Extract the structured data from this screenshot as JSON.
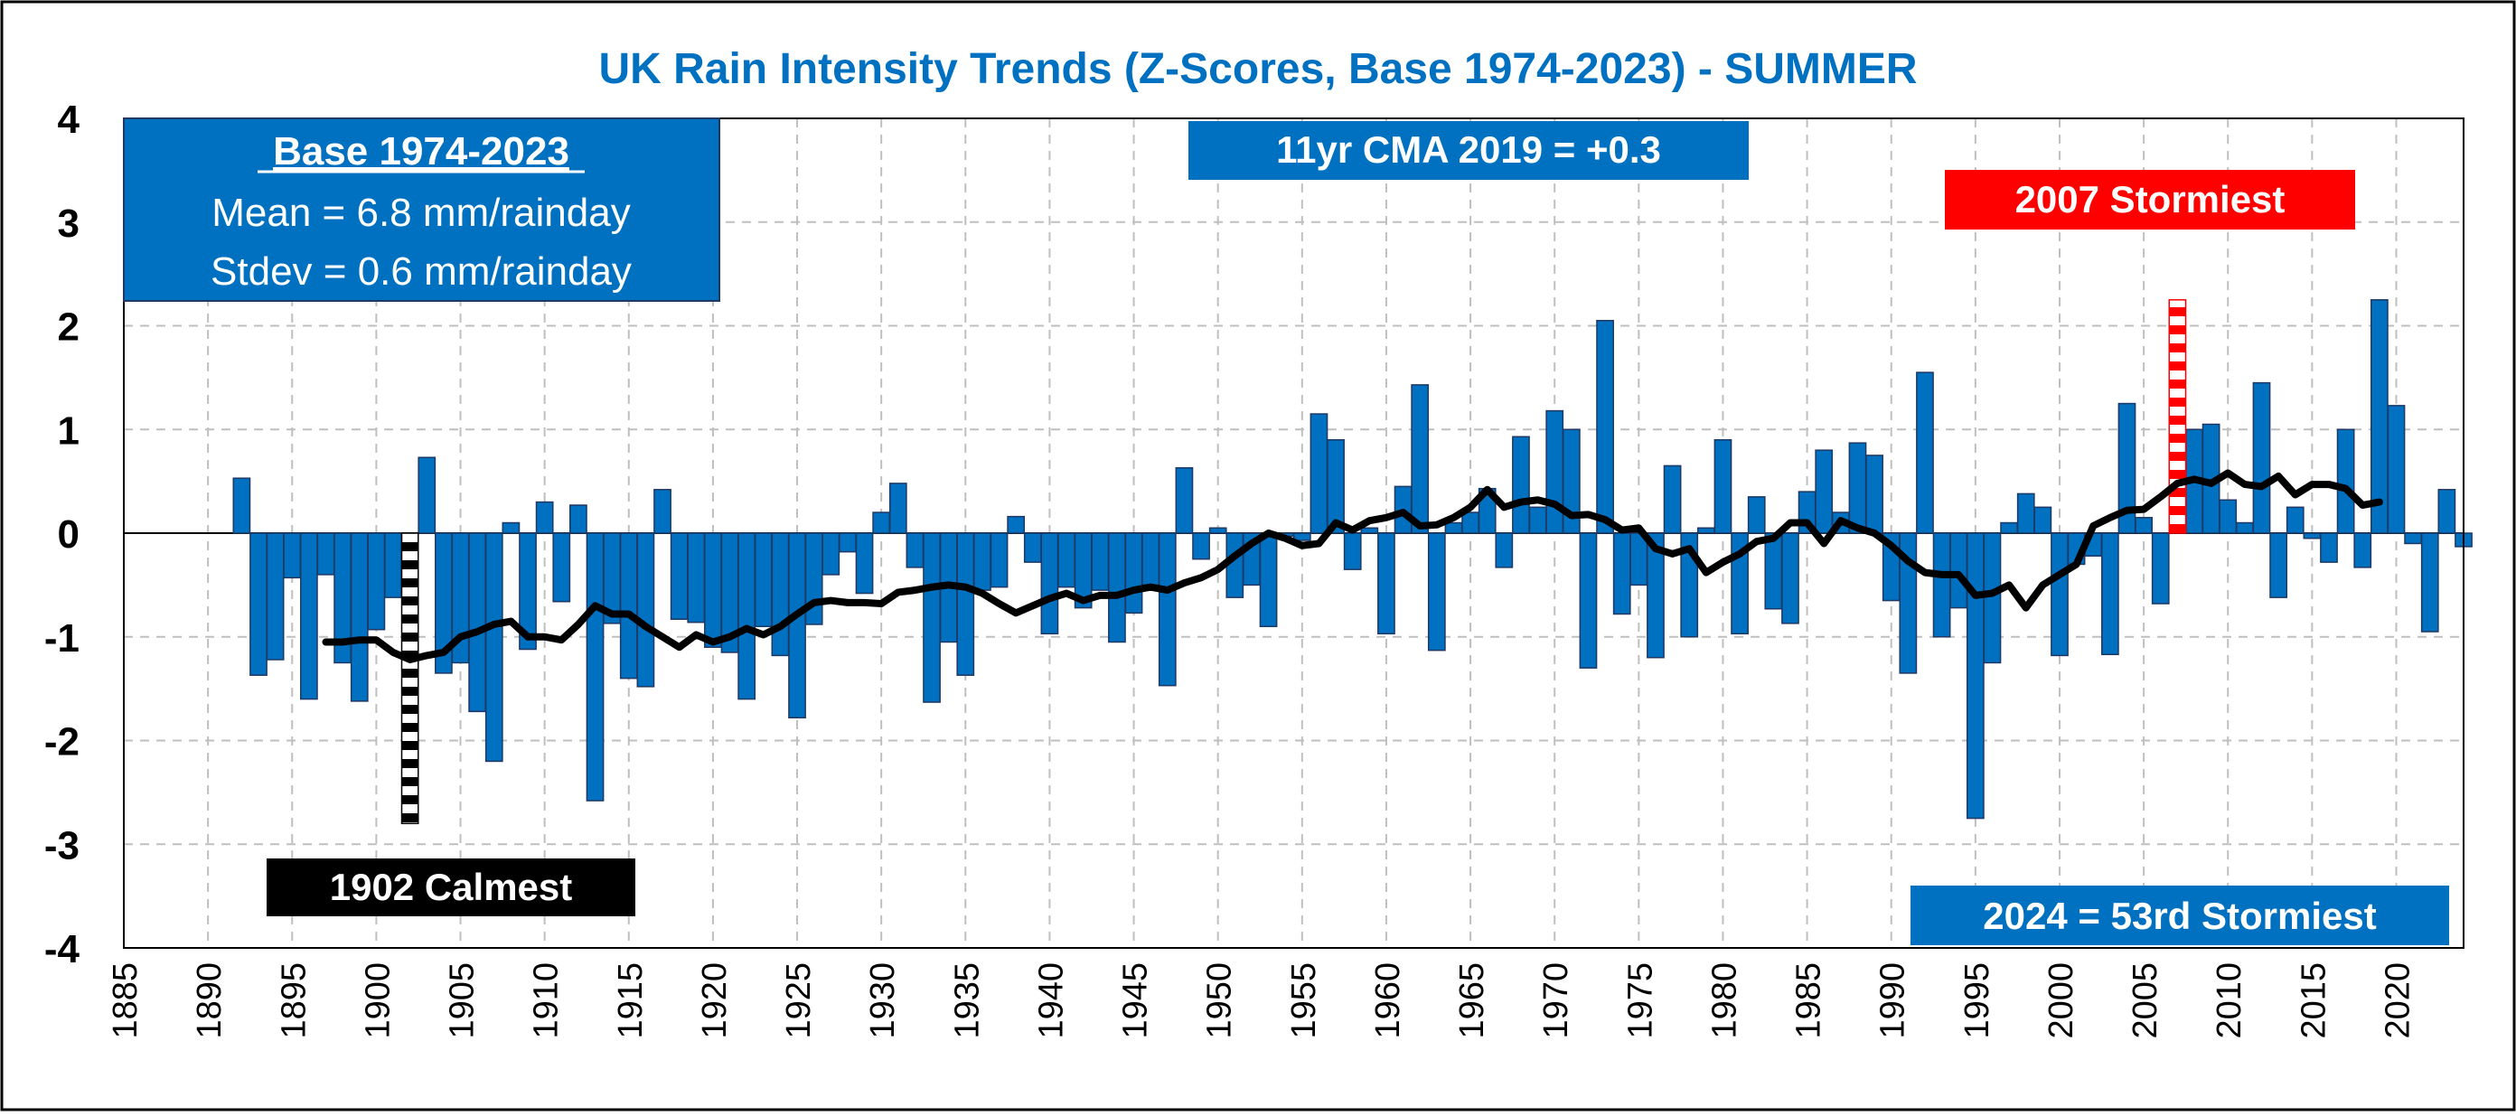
{
  "chart_data": {
    "type": "bar",
    "title": "UK Rain Intensity Trends (Z-Scores, Base 1974-2023) - SUMMER",
    "xlabel": "",
    "ylabel": "",
    "xlim": [
      1885,
      2024
    ],
    "ylim": [
      -4,
      4
    ],
    "grid": true,
    "x_ticks": [
      "1885",
      "1890",
      "1895",
      "1900",
      "1905",
      "1910",
      "1915",
      "1920",
      "1925",
      "1930",
      "1935",
      "1940",
      "1945",
      "1950",
      "1955",
      "1960",
      "1965",
      "1970",
      "1975",
      "1980",
      "1985",
      "1990",
      "1995",
      "2000",
      "2005",
      "2010",
      "2015",
      "2020"
    ],
    "y_ticks": [
      "-4",
      "-3",
      "-2",
      "-1",
      "0",
      "1",
      "2",
      "3",
      "4"
    ],
    "years": [
      1892,
      1893,
      1894,
      1895,
      1896,
      1897,
      1898,
      1899,
      1900,
      1901,
      1902,
      1903,
      1904,
      1905,
      1906,
      1907,
      1908,
      1909,
      1910,
      1911,
      1912,
      1913,
      1914,
      1915,
      1916,
      1917,
      1918,
      1919,
      1920,
      1921,
      1922,
      1923,
      1924,
      1925,
      1926,
      1927,
      1928,
      1929,
      1930,
      1931,
      1932,
      1933,
      1934,
      1935,
      1936,
      1937,
      1938,
      1939,
      1940,
      1941,
      1942,
      1943,
      1944,
      1945,
      1946,
      1947,
      1948,
      1949,
      1950,
      1951,
      1952,
      1953,
      1954,
      1955,
      1956,
      1957,
      1958,
      1959,
      1960,
      1961,
      1962,
      1963,
      1964,
      1965,
      1966,
      1967,
      1968,
      1969,
      1970,
      1971,
      1972,
      1973,
      1974,
      1975,
      1976,
      1977,
      1978,
      1979,
      1980,
      1981,
      1982,
      1983,
      1984,
      1985,
      1986,
      1987,
      1988,
      1989,
      1990,
      1991,
      1992,
      1993,
      1994,
      1995,
      1996,
      1997,
      1998,
      1999,
      2000,
      2001,
      2002,
      2003,
      2004,
      2005,
      2006,
      2007,
      2008,
      2009,
      2010,
      2011,
      2012,
      2013,
      2014,
      2015,
      2016,
      2017,
      2018,
      2019,
      2020,
      2021,
      2022,
      2023,
      2024
    ],
    "values": [
      0.53,
      -1.37,
      -1.22,
      -0.43,
      -1.6,
      -0.4,
      -1.25,
      -1.62,
      -0.93,
      -0.62,
      -2.8,
      0.73,
      -1.35,
      -1.25,
      -1.72,
      -2.2,
      0.1,
      -1.12,
      0.3,
      -0.66,
      0.27,
      -2.58,
      -0.87,
      -1.4,
      -1.48,
      0.42,
      -0.83,
      -0.86,
      -1.1,
      -1.15,
      -1.6,
      -0.9,
      -1.18,
      -1.78,
      -0.88,
      -0.4,
      -0.18,
      -0.58,
      0.2,
      0.48,
      -0.33,
      -1.63,
      -1.05,
      -1.37,
      -0.55,
      -0.52,
      0.16,
      -0.28,
      -0.97,
      -0.52,
      -0.72,
      -0.55,
      -1.05,
      -0.77,
      -0.5,
      -1.47,
      0.63,
      -0.25,
      0.05,
      -0.62,
      -0.5,
      -0.9,
      -0.03,
      -0.07,
      1.15,
      0.9,
      -0.35,
      0.05,
      -0.97,
      0.45,
      1.43,
      -1.13,
      0.1,
      0.2,
      0.43,
      -0.33,
      0.93,
      0.25,
      1.18,
      1.0,
      -1.3,
      2.05,
      -0.78,
      -0.5,
      -1.2,
      0.65,
      -1.0,
      0.05,
      0.9,
      -0.97,
      0.35,
      -0.73,
      -0.87,
      0.4,
      0.8,
      0.2,
      0.87,
      0.75,
      -0.65,
      -1.35,
      1.55,
      -1.0,
      -0.72,
      -2.75,
      -1.25,
      0.1,
      0.38,
      0.25,
      -1.18,
      -0.3,
      -0.22,
      -1.17,
      1.25,
      0.15,
      -0.68,
      2.25,
      1.0,
      1.05,
      0.32,
      0.1,
      1.45,
      -0.62,
      0.25,
      -0.05,
      -0.28,
      1.0,
      -0.33,
      2.25,
      1.23,
      -0.1,
      -0.95,
      0.42,
      -0.13
    ],
    "highlight_max": {
      "year": 2007,
      "color": "#ff0000"
    },
    "highlight_min": {
      "year": 1902,
      "color": "#000000"
    },
    "bar_color": "#0070c0",
    "series": [
      {
        "name": "11yr CMA",
        "color": "#000000",
        "x": [
          1897,
          1898,
          1899,
          1900,
          1901,
          1902,
          1903,
          1904,
          1905,
          1906,
          1907,
          1908,
          1909,
          1910,
          1911,
          1912,
          1913,
          1914,
          1915,
          1916,
          1917,
          1918,
          1919,
          1920,
          1921,
          1922,
          1923,
          1924,
          1925,
          1926,
          1927,
          1928,
          1929,
          1930,
          1931,
          1932,
          1933,
          1934,
          1935,
          1936,
          1937,
          1938,
          1939,
          1940,
          1941,
          1942,
          1943,
          1944,
          1945,
          1946,
          1947,
          1948,
          1949,
          1950,
          1951,
          1952,
          1953,
          1954,
          1955,
          1956,
          1957,
          1958,
          1959,
          1960,
          1961,
          1962,
          1963,
          1964,
          1965,
          1966,
          1967,
          1968,
          1969,
          1970,
          1971,
          1972,
          1973,
          1974,
          1975,
          1976,
          1977,
          1978,
          1979,
          1980,
          1981,
          1982,
          1983,
          1984,
          1985,
          1986,
          1987,
          1988,
          1989,
          1990,
          1991,
          1992,
          1993,
          1994,
          1995,
          1996,
          1997,
          1998,
          1999,
          2000,
          2001,
          2002,
          2003,
          2004,
          2005,
          2006,
          2007,
          2008,
          2009,
          2010,
          2011,
          2012,
          2013,
          2014,
          2015,
          2016,
          2017,
          2018,
          2019
        ],
        "y": [
          -1.05,
          -1.05,
          -1.03,
          -1.03,
          -1.15,
          -1.22,
          -1.18,
          -1.15,
          -1.0,
          -0.95,
          -0.88,
          -0.85,
          -1.0,
          -1.0,
          -1.03,
          -0.88,
          -0.7,
          -0.78,
          -0.78,
          -0.9,
          -1.0,
          -1.1,
          -0.98,
          -1.05,
          -1.0,
          -0.92,
          -0.98,
          -0.9,
          -0.78,
          -0.67,
          -0.65,
          -0.67,
          -0.67,
          -0.68,
          -0.57,
          -0.55,
          -0.52,
          -0.5,
          -0.52,
          -0.58,
          -0.68,
          -0.77,
          -0.7,
          -0.63,
          -0.58,
          -0.65,
          -0.6,
          -0.6,
          -0.55,
          -0.52,
          -0.55,
          -0.48,
          -0.43,
          -0.35,
          -0.22,
          -0.1,
          0.0,
          -0.05,
          -0.12,
          -0.1,
          0.1,
          0.03,
          0.12,
          0.15,
          0.2,
          0.07,
          0.08,
          0.15,
          0.25,
          0.42,
          0.25,
          0.3,
          0.32,
          0.28,
          0.17,
          0.18,
          0.13,
          0.03,
          0.05,
          -0.15,
          -0.2,
          -0.15,
          -0.38,
          -0.28,
          -0.2,
          -0.08,
          -0.05,
          0.1,
          0.1,
          -0.1,
          0.12,
          0.05,
          0.0,
          -0.12,
          -0.27,
          -0.38,
          -0.4,
          -0.4,
          -0.6,
          -0.58,
          -0.5,
          -0.72,
          -0.5,
          -0.4,
          -0.3,
          0.07,
          0.15,
          0.22,
          0.23,
          0.35,
          0.48,
          0.52,
          0.48,
          0.58,
          0.47,
          0.45,
          0.55,
          0.37,
          0.47,
          0.47,
          0.43,
          0.27,
          0.3
        ]
      }
    ],
    "annotations": {
      "base_box": {
        "title": "Base 1974-2023",
        "mean": "Mean = 6.8 mm/rainday",
        "stdev": "Stdev = 0.6 mm/rainday"
      },
      "cma_label": "11yr CMA 2019 = +0.3",
      "stormiest_label": "2007 Stormiest",
      "calmest_label": "1902 Calmest",
      "rank_label": "2024 = 53rd Stormiest"
    }
  },
  "colors": {
    "title": "#0070c0",
    "box_fill": "#0070c0",
    "stormiest_fill": "#ff0000",
    "calmest_fill": "#000000",
    "grid": "#bfbfbf"
  }
}
